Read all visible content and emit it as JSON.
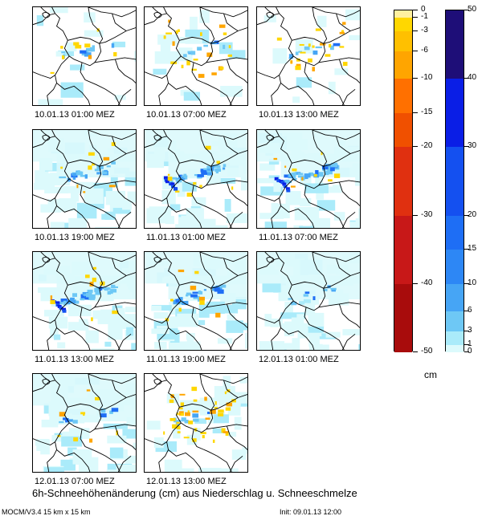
{
  "panels": [
    {
      "label": "10.01.13 01:00 MEZ",
      "cyan_coverage": "low",
      "alpine_snow": "light",
      "melt": "light"
    },
    {
      "label": "10.01.13 07:00 MEZ",
      "cyan_coverage": "low",
      "alpine_snow": "light",
      "melt": "moderate"
    },
    {
      "label": "10.01.13 13:00 MEZ",
      "cyan_coverage": "low",
      "alpine_snow": "light",
      "melt": "moderate"
    },
    {
      "label": "10.01.13 19:00 MEZ",
      "cyan_coverage": "high",
      "alpine_snow": "moderate",
      "melt": "light"
    },
    {
      "label": "11.01.13 01:00 MEZ",
      "cyan_coverage": "high",
      "alpine_snow": "strong",
      "melt": "light"
    },
    {
      "label": "11.01.13 07:00 MEZ",
      "cyan_coverage": "high",
      "alpine_snow": "strong",
      "melt": "light"
    },
    {
      "label": "11.01.13 13:00 MEZ",
      "cyan_coverage": "high",
      "alpine_snow": "strong",
      "melt": "light"
    },
    {
      "label": "11.01.13 19:00 MEZ",
      "cyan_coverage": "high",
      "alpine_snow": "moderate",
      "melt": "light"
    },
    {
      "label": "12.01.13 01:00 MEZ",
      "cyan_coverage": "high",
      "alpine_snow": "light",
      "melt": "none"
    },
    {
      "label": "12.01.13 07:00 MEZ",
      "cyan_coverage": "high",
      "alpine_snow": "light",
      "melt": "light"
    },
    {
      "label": "12.01.13 13:00 MEZ",
      "cyan_coverage": "medium",
      "alpine_snow": "light",
      "melt": "strong"
    }
  ],
  "legend_negative": {
    "tick_labels": [
      "0",
      "-1",
      "-3",
      "-6",
      "-10",
      "-15",
      "-20",
      "-30",
      "-40",
      "-50"
    ],
    "tick_values": [
      0,
      -1,
      -3,
      -6,
      -10,
      -15,
      -20,
      -30,
      -40,
      -50
    ],
    "colors": [
      "#fff0a0",
      "#ffd700",
      "#ffc000",
      "#ffa500",
      "#ff7000",
      "#f05000",
      "#e03010",
      "#c81818",
      "#a80c0c"
    ]
  },
  "legend_positive": {
    "tick_labels": [
      "50",
      "40",
      "30",
      "20",
      "15",
      "10",
      "6",
      "3",
      "1",
      "0"
    ],
    "tick_values": [
      50,
      40,
      30,
      20,
      15,
      10,
      6,
      3,
      1,
      0
    ],
    "colors": [
      "#1e0e78",
      "#0a1ee6",
      "#1450f0",
      "#1e6ef5",
      "#2d87f5",
      "#46a5f5",
      "#6ec8f5",
      "#aaebfa",
      "#dcfafc"
    ]
  },
  "unit": "cm",
  "title": "6h-Schneehöhenänderung (cm) aus Niederschlag u. Schneeschmelze",
  "model": "MOCM/V3.4 15 km x 15 km",
  "init": "Init: 09.01.13 12:00"
}
